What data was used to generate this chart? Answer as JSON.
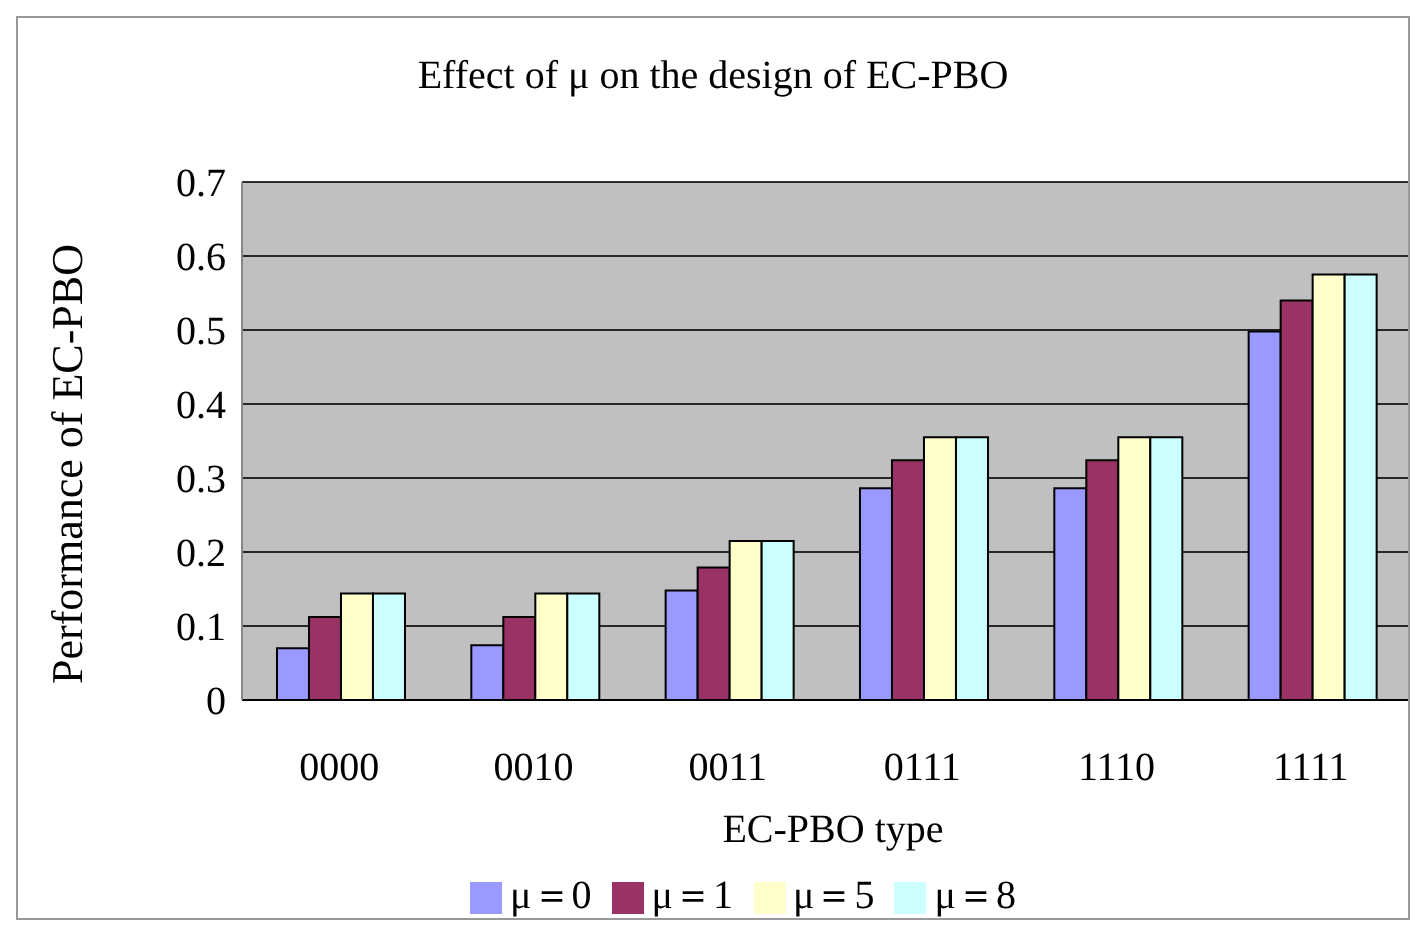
{
  "chart_data": {
    "type": "bar",
    "title": "Effect of μ on the design of EC-PBO",
    "xlabel": "EC-PBO type",
    "ylabel": "Performance of EC-PBO",
    "categories": [
      "0000",
      "0010",
      "0011",
      "0111",
      "1110",
      "1111"
    ],
    "series": [
      {
        "name": "μ＝0",
        "color": "#9999ff",
        "values": [
          0.07,
          0.074,
          0.148,
          0.286,
          0.286,
          0.498
        ]
      },
      {
        "name": "μ＝1",
        "color": "#993366",
        "values": [
          0.112,
          0.112,
          0.179,
          0.324,
          0.324,
          0.54
        ]
      },
      {
        "name": "μ＝5",
        "color": "#ffffcc",
        "values": [
          0.144,
          0.144,
          0.215,
          0.355,
          0.355,
          0.575
        ]
      },
      {
        "name": "μ＝8",
        "color": "#ccffff",
        "values": [
          0.144,
          0.144,
          0.215,
          0.355,
          0.355,
          0.575
        ]
      }
    ],
    "ylim": [
      0,
      0.7
    ],
    "yticks": [
      0,
      0.1,
      0.2,
      0.3,
      0.4,
      0.5,
      0.6,
      0.7
    ],
    "grid": "y",
    "legend": "bottom"
  }
}
